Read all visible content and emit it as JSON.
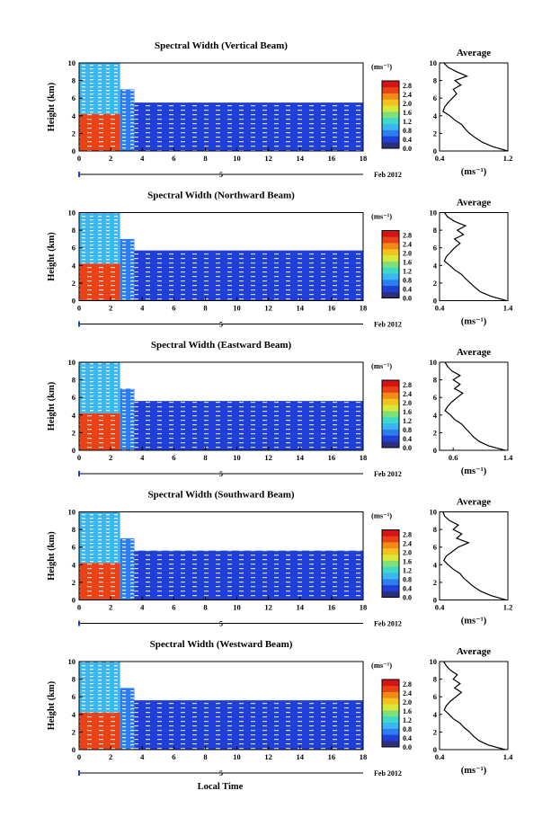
{
  "figure": {
    "shared_xlabel": "Local Time",
    "date_label": "Feb 2012",
    "day_marker": "5",
    "unit_label": "(ms⁻¹)",
    "colors": [
      "#2e2f7c",
      "#1f3fd6",
      "#2d7cf0",
      "#3ab6f0",
      "#3fd9c8",
      "#7fe07a",
      "#d7e83a",
      "#f3c21d",
      "#f38a18",
      "#e84216",
      "#d51414"
    ]
  },
  "chart_data": [
    {
      "type": "heatmap",
      "title": "Spectral Width (Vertical Beam)",
      "ylabel": "Height (km)",
      "xlabel": "Local Time",
      "x_ticks": [
        "0",
        "2",
        "4",
        "6",
        "8",
        "10",
        "12",
        "14",
        "16",
        "18"
      ],
      "y_ticks": [
        "0",
        "2",
        "4",
        "6",
        "8",
        "10"
      ],
      "xlim": [
        0,
        18
      ],
      "ylim": [
        0,
        10
      ],
      "colorbar": {
        "label": "(ms⁻¹)",
        "ticks": [
          "0.0",
          "0.4",
          "0.8",
          "1.2",
          "1.6",
          "2.0",
          "2.4",
          "2.8"
        ],
        "range": [
          0,
          3.0
        ]
      },
      "regions": [
        {
          "x": [
            0,
            2.6
          ],
          "y": [
            4.2,
            10
          ],
          "value": 0.9
        },
        {
          "x": [
            0,
            2.6
          ],
          "y": [
            0,
            4.2
          ],
          "value": 2.6
        },
        {
          "x": [
            2.6,
            3.5
          ],
          "y": [
            0,
            7.0
          ],
          "value": 0.6
        },
        {
          "x": [
            3.5,
            18
          ],
          "y": [
            0,
            5.5
          ],
          "value": 0.5
        }
      ],
      "average_profile": {
        "title": "Average",
        "xlabel": "(ms⁻¹)",
        "x_ticks": [
          "0.4",
          "1.2"
        ],
        "xlim": [
          0.4,
          1.2
        ],
        "ylim": [
          0,
          10
        ],
        "height": [
          0,
          0.5,
          1,
          1.5,
          2,
          2.5,
          3,
          3.5,
          4,
          4.5,
          5,
          5.5,
          6,
          6.5,
          7,
          7.5,
          8,
          8.5,
          9,
          9.5,
          10
        ],
        "value": [
          1.2,
          1.02,
          0.9,
          0.82,
          0.75,
          0.7,
          0.66,
          0.58,
          0.52,
          0.44,
          0.46,
          0.5,
          0.55,
          0.6,
          0.56,
          0.65,
          0.58,
          0.72,
          0.6,
          0.5,
          0.45
        ]
      }
    },
    {
      "type": "heatmap",
      "title": "Spectral Width (Northward Beam)",
      "ylabel": "Height (km)",
      "xlabel": "Local Time",
      "x_ticks": [
        "0",
        "2",
        "4",
        "6",
        "8",
        "10",
        "12",
        "14",
        "16",
        "18"
      ],
      "y_ticks": [
        "0",
        "2",
        "4",
        "6",
        "8",
        "10"
      ],
      "xlim": [
        0,
        18
      ],
      "ylim": [
        0,
        10
      ],
      "colorbar": {
        "label": "(ms⁻¹)",
        "ticks": [
          "0.0",
          "0.4",
          "0.8",
          "1.2",
          "1.6",
          "2.0",
          "2.4",
          "2.8"
        ],
        "range": [
          0,
          3.0
        ]
      },
      "regions": [
        {
          "x": [
            0,
            2.6
          ],
          "y": [
            4.2,
            10
          ],
          "value": 0.9
        },
        {
          "x": [
            0,
            2.6
          ],
          "y": [
            0,
            4.2
          ],
          "value": 2.6
        },
        {
          "x": [
            2.6,
            3.5
          ],
          "y": [
            0,
            7.0
          ],
          "value": 0.6
        },
        {
          "x": [
            3.5,
            18
          ],
          "y": [
            0,
            5.7
          ],
          "value": 0.5
        }
      ],
      "average_profile": {
        "title": "Average",
        "xlabel": "(ms⁻¹)",
        "x_ticks": [
          "0.4",
          "1.4"
        ],
        "xlim": [
          0.4,
          1.4
        ],
        "ylim": [
          0,
          10
        ],
        "height": [
          0,
          0.5,
          1,
          1.5,
          2,
          2.5,
          3,
          3.5,
          4,
          4.5,
          5,
          5.5,
          6,
          6.5,
          7,
          7.5,
          8,
          8.5,
          9,
          9.5,
          10
        ],
        "value": [
          1.38,
          1.15,
          1.0,
          0.92,
          0.85,
          0.78,
          0.72,
          0.62,
          0.55,
          0.47,
          0.5,
          0.56,
          0.62,
          0.7,
          0.62,
          0.75,
          0.66,
          0.78,
          0.62,
          0.52,
          0.47
        ]
      }
    },
    {
      "type": "heatmap",
      "title": "Spectral Width (Eastward Beam)",
      "ylabel": "Height (km)",
      "xlabel": "Local Time",
      "x_ticks": [
        "0",
        "2",
        "4",
        "6",
        "8",
        "10",
        "12",
        "14",
        "16",
        "18"
      ],
      "y_ticks": [
        "0",
        "2",
        "4",
        "6",
        "8",
        "10"
      ],
      "xlim": [
        0,
        18
      ],
      "ylim": [
        0,
        10
      ],
      "colorbar": {
        "label": "(ms⁻¹)",
        "ticks": [
          "0.0",
          "0.4",
          "0.8",
          "1.2",
          "1.6",
          "2.0",
          "2.4",
          "2.8"
        ],
        "range": [
          0,
          3.0
        ]
      },
      "regions": [
        {
          "x": [
            0,
            2.6
          ],
          "y": [
            4.2,
            10
          ],
          "value": 0.9
        },
        {
          "x": [
            0,
            2.6
          ],
          "y": [
            0,
            4.2
          ],
          "value": 2.6
        },
        {
          "x": [
            2.6,
            3.5
          ],
          "y": [
            0,
            7.0
          ],
          "value": 0.6
        },
        {
          "x": [
            3.5,
            18
          ],
          "y": [
            0,
            5.6
          ],
          "value": 0.5
        }
      ],
      "average_profile": {
        "title": "Average",
        "xlabel": "(ms⁻¹)",
        "x_ticks": [
          "0.6",
          "1.4"
        ],
        "xlim": [
          0.4,
          1.4
        ],
        "ylim": [
          0,
          10
        ],
        "height": [
          0,
          0.5,
          1,
          1.5,
          2,
          2.5,
          3,
          3.5,
          4,
          4.5,
          5,
          5.5,
          6,
          6.5,
          7,
          7.5,
          8,
          8.5,
          9,
          9.5,
          10
        ],
        "value": [
          1.36,
          1.12,
          0.98,
          0.9,
          0.84,
          0.78,
          0.72,
          0.62,
          0.56,
          0.48,
          0.52,
          0.58,
          0.66,
          0.74,
          0.62,
          0.7,
          0.6,
          0.7,
          0.58,
          0.52,
          0.48
        ]
      }
    },
    {
      "type": "heatmap",
      "title": "Spectral Width (Southward Beam)",
      "ylabel": "Height (km)",
      "xlabel": "Local Time",
      "x_ticks": [
        "0",
        "2",
        "4",
        "6",
        "8",
        "10",
        "12",
        "14",
        "16",
        "18"
      ],
      "y_ticks": [
        "0",
        "2",
        "4",
        "6",
        "8",
        "10"
      ],
      "xlim": [
        0,
        18
      ],
      "ylim": [
        0,
        10
      ],
      "colorbar": {
        "label": "(ms⁻¹)",
        "ticks": [
          "0.0",
          "0.4",
          "0.8",
          "1.2",
          "1.6",
          "2.0",
          "2.4",
          "2.8"
        ],
        "range": [
          0,
          3.0
        ]
      },
      "regions": [
        {
          "x": [
            0,
            2.6
          ],
          "y": [
            4.2,
            10
          ],
          "value": 0.9
        },
        {
          "x": [
            0,
            2.6
          ],
          "y": [
            0,
            4.2
          ],
          "value": 2.6
        },
        {
          "x": [
            2.6,
            3.5
          ],
          "y": [
            0,
            7.0
          ],
          "value": 0.6
        },
        {
          "x": [
            3.5,
            18
          ],
          "y": [
            0,
            5.6
          ],
          "value": 0.5
        }
      ],
      "average_profile": {
        "title": "Average",
        "xlabel": "(ms⁻¹)",
        "x_ticks": [
          "0.4",
          "1.2"
        ],
        "xlim": [
          0.4,
          1.2
        ],
        "ylim": [
          0,
          10
        ],
        "height": [
          0,
          0.5,
          1,
          1.5,
          2,
          2.5,
          3,
          3.5,
          4,
          4.5,
          5,
          5.5,
          6,
          6.5,
          7,
          7.5,
          8,
          8.5,
          9,
          9.5,
          10
        ],
        "value": [
          1.18,
          1.0,
          0.88,
          0.8,
          0.74,
          0.68,
          0.64,
          0.56,
          0.5,
          0.45,
          0.48,
          0.55,
          0.62,
          0.74,
          0.6,
          0.66,
          0.56,
          0.62,
          0.52,
          0.46,
          0.44
        ]
      }
    },
    {
      "type": "heatmap",
      "title": "Spectral Width (Westward Beam)",
      "ylabel": "Height (km)",
      "xlabel": "Local Time",
      "x_ticks": [
        "0",
        "2",
        "4",
        "6",
        "8",
        "10",
        "12",
        "14",
        "16",
        "18"
      ],
      "y_ticks": [
        "0",
        "2",
        "4",
        "6",
        "8",
        "10"
      ],
      "xlim": [
        0,
        18
      ],
      "ylim": [
        0,
        10
      ],
      "colorbar": {
        "label": "(ms⁻¹)",
        "ticks": [
          "0.0",
          "0.4",
          "0.8",
          "1.2",
          "1.6",
          "2.0",
          "2.4",
          "2.8"
        ],
        "range": [
          0,
          3.0
        ]
      },
      "regions": [
        {
          "x": [
            0,
            2.6
          ],
          "y": [
            4.2,
            10
          ],
          "value": 0.9
        },
        {
          "x": [
            0,
            2.6
          ],
          "y": [
            0,
            4.2
          ],
          "value": 2.6
        },
        {
          "x": [
            2.6,
            3.5
          ],
          "y": [
            0,
            7.0
          ],
          "value": 0.6
        },
        {
          "x": [
            3.5,
            18
          ],
          "y": [
            0,
            5.6
          ],
          "value": 0.5
        }
      ],
      "average_profile": {
        "title": "Average",
        "xlabel": "(ms⁻¹)",
        "x_ticks": [
          "0.4",
          "1.4"
        ],
        "xlim": [
          0.4,
          1.4
        ],
        "ylim": [
          0,
          10
        ],
        "height": [
          0,
          0.5,
          1,
          1.5,
          2,
          2.5,
          3,
          3.5,
          4,
          4.5,
          5,
          5.5,
          6,
          6.5,
          7,
          7.5,
          8,
          8.5,
          9,
          9.5,
          10
        ],
        "value": [
          1.36,
          1.12,
          0.98,
          0.9,
          0.84,
          0.76,
          0.7,
          0.6,
          0.54,
          0.47,
          0.5,
          0.56,
          0.64,
          0.72,
          0.62,
          0.7,
          0.6,
          0.66,
          0.56,
          0.5,
          0.46
        ]
      }
    }
  ]
}
